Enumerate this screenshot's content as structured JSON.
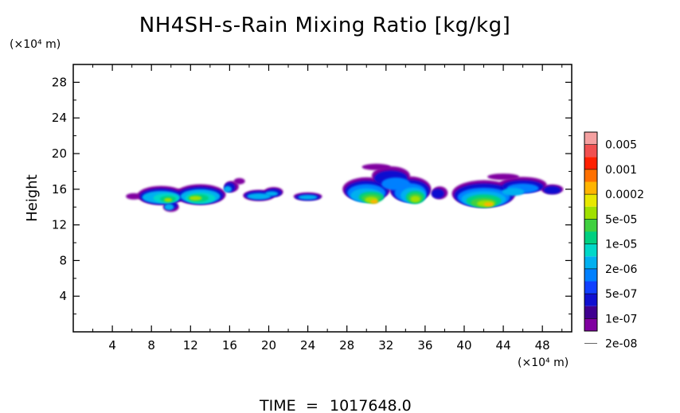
{
  "chart_data": {
    "type": "heatmap",
    "title": "NH4SH-s-Rain Mixing Ratio [kg/kg]",
    "ylabel": "Height",
    "x_unit": "(×10⁴ m)",
    "y_unit": "(×10⁴ m)",
    "xlim": [
      0,
      51
    ],
    "ylim": [
      0,
      30
    ],
    "x_ticks": [
      4,
      8,
      12,
      16,
      20,
      24,
      28,
      32,
      36,
      40,
      44,
      48
    ],
    "y_ticks": [
      4,
      8,
      12,
      16,
      20,
      24,
      28
    ],
    "x_tick_labels": [
      "4",
      "8",
      "12",
      "16",
      "20",
      "24",
      "28",
      "32",
      "36",
      "40",
      "44",
      "48"
    ],
    "y_tick_labels": [
      "4",
      "8",
      "12",
      "16",
      "20",
      "24",
      "28"
    ],
    "colorbar": {
      "levels": [
        "0.005",
        "0.001",
        "0.0002",
        "5e-05",
        "1e-05",
        "2e-06",
        "5e-07",
        "1e-07",
        "2e-08"
      ],
      "colors_top_to_bottom": [
        "#f4a0a0",
        "#f05050",
        "#ff2000",
        "#ff7000",
        "#ffb400",
        "#e8e800",
        "#a0e000",
        "#40d040",
        "#00d080",
        "#00d8c8",
        "#00b0f0",
        "#0080ff",
        "#1040ff",
        "#1010d0",
        "#400090",
        "#8000a0"
      ]
    },
    "regions": [
      {
        "name": "left-cloud",
        "x_range": [
          5.5,
          17.5
        ],
        "y_range": [
          13.3,
          17.4
        ],
        "peak_level": "5e-05"
      },
      {
        "name": "mid-cloud-1",
        "x_range": [
          17.5,
          21.5
        ],
        "y_range": [
          14.2,
          16.4
        ],
        "peak_level": "5e-07"
      },
      {
        "name": "mid-cloud-2",
        "x_range": [
          22.5,
          25.5
        ],
        "y_range": [
          14.3,
          16.1
        ],
        "peak_level": "5e-07"
      },
      {
        "name": "center-cloud",
        "x_range": [
          27,
          38.5
        ],
        "y_range": [
          13.2,
          18.8
        ],
        "peak_level": "0.0002"
      },
      {
        "name": "right-cloud",
        "x_range": [
          39,
          50.5
        ],
        "y_range": [
          12.8,
          18.2
        ],
        "peak_level": "0.0002"
      }
    ]
  },
  "footer": {
    "time_label": "TIME",
    "time_eq": "=",
    "time_value": "1017648.0"
  }
}
